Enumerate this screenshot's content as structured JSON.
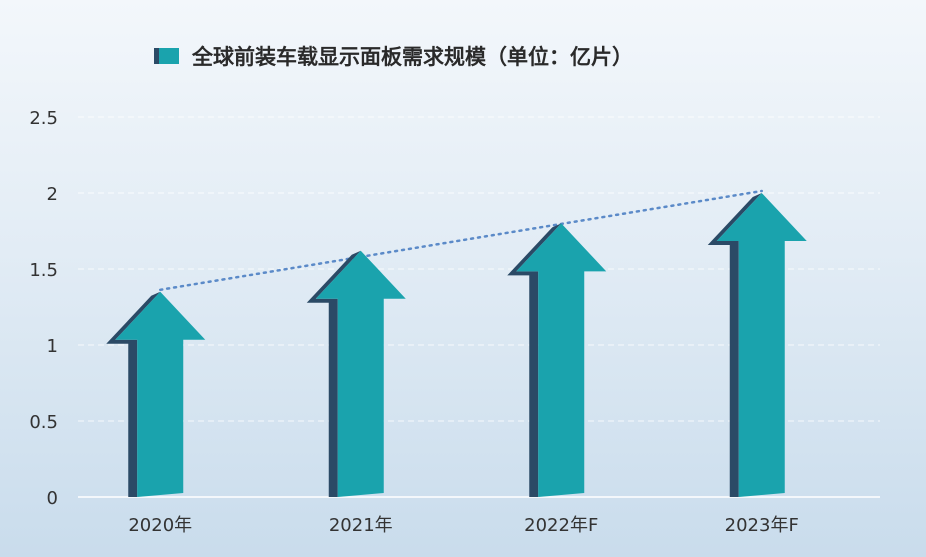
{
  "chart_data": {
    "type": "bar",
    "title": "全球前装车载显示面板需求规模（单位：亿片）",
    "legend_label": "全球前装车载显示面板需求规模（单位：亿片）",
    "legend_position": "top",
    "categories": [
      "2020年",
      "2021年",
      "2022年F",
      "2023年F"
    ],
    "values": [
      1.35,
      1.62,
      1.8,
      2.0
    ],
    "yticks": [
      "0",
      "0.5",
      "1",
      "1.5",
      "2",
      "2.5"
    ],
    "ylim": [
      0,
      2.5
    ],
    "grid": true,
    "trendline": true,
    "colors": {
      "bar_face": "#1aa3ad",
      "bar_side": "#2b4a66",
      "trend": "#5b8ac8",
      "grid": "#ffffff"
    }
  }
}
